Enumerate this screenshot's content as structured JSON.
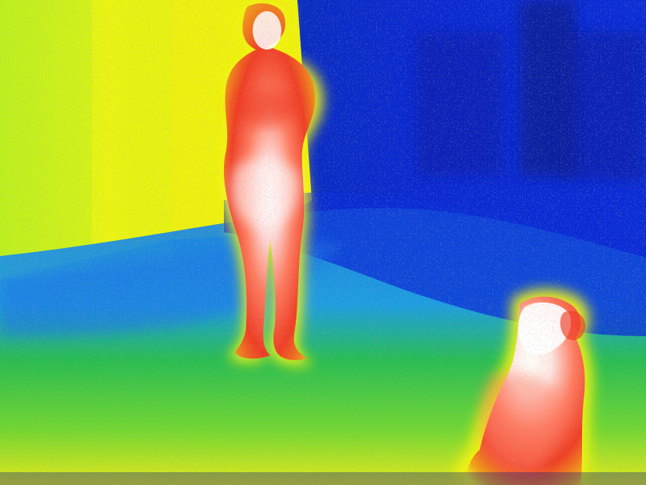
{
  "image": {
    "kind": "thermal-camera-frame",
    "palette": {
      "coldest": "#0a0f8c",
      "cold": "#1f55e6",
      "cool": "#19b4d6",
      "mild": "#2fcc2a",
      "warm": "#f3f40f",
      "hot": "#e8231f",
      "hottest": "#ffffff"
    },
    "subjects": {
      "person": {
        "label_icon": "person-icon",
        "pose": "standing-arms-crossed"
      },
      "dog": {
        "label_icon": "dog-icon",
        "pose": "sitting"
      }
    }
  }
}
